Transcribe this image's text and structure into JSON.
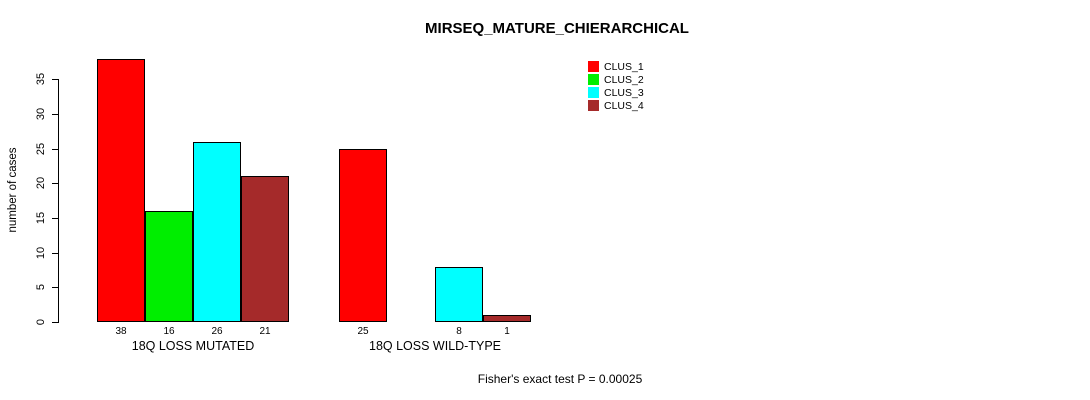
{
  "chart_data": {
    "type": "bar",
    "title": "MIRSEQ_MATURE_CHIERARCHICAL",
    "ylabel": "number of cases",
    "xlabel": "",
    "categories": [
      "18Q LOSS MUTATED",
      "18Q LOSS WILD-TYPE"
    ],
    "series": [
      {
        "name": "CLUS_1",
        "color": "#FF0000",
        "values": [
          38,
          25
        ]
      },
      {
        "name": "CLUS_2",
        "color": "#00EE00",
        "values": [
          16,
          0
        ]
      },
      {
        "name": "CLUS_3",
        "color": "#00FFFF",
        "values": [
          26,
          8
        ]
      },
      {
        "name": "CLUS_4",
        "color": "#A52A2A",
        "values": [
          21,
          1
        ]
      }
    ],
    "bar_labels": [
      [
        "38",
        "16",
        "26",
        "21"
      ],
      [
        "25",
        "",
        "8",
        "1"
      ]
    ],
    "yticks": [
      0,
      5,
      10,
      15,
      20,
      25,
      30,
      35
    ],
    "ylim": [
      0,
      38
    ],
    "grid": false,
    "legend_position": "top-right",
    "annotation": "Fisher's exact test P = 0.00025"
  }
}
